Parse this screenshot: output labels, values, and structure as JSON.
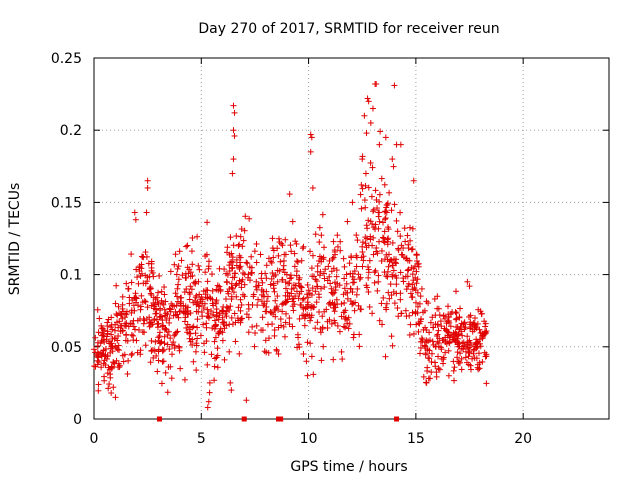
{
  "chart_data": {
    "type": "scatter",
    "title": "Day 270 of 2017, SRMTID for receiver reun",
    "xlabel": "GPS time / hours",
    "ylabel": "SRMTID / TECUs",
    "xlim": [
      0,
      24
    ],
    "ylim": [
      0,
      0.25
    ],
    "x_ticks": [
      "0",
      "5",
      "10",
      "15",
      "20"
    ],
    "x_tick_values": [
      0,
      5,
      10,
      15,
      20
    ],
    "y_ticks": [
      "0",
      "0.05",
      "0.1",
      "0.15",
      "0.2",
      "0.25"
    ],
    "y_tick_values": [
      0,
      0.05,
      0.1,
      0.15,
      0.2,
      0.25
    ],
    "grid": true,
    "marker": "+",
    "color": "#e00000",
    "series": [
      {
        "name": "SRMTID",
        "trend": [
          {
            "x": 0.0,
            "y": 0.05,
            "spread": 0.012
          },
          {
            "x": 0.5,
            "y": 0.045,
            "spread": 0.012
          },
          {
            "x": 1.0,
            "y": 0.055,
            "spread": 0.013
          },
          {
            "x": 1.5,
            "y": 0.07,
            "spread": 0.015
          },
          {
            "x": 2.0,
            "y": 0.085,
            "spread": 0.02
          },
          {
            "x": 2.5,
            "y": 0.08,
            "spread": 0.02
          },
          {
            "x": 3.0,
            "y": 0.06,
            "spread": 0.015
          },
          {
            "x": 3.5,
            "y": 0.065,
            "spread": 0.018
          },
          {
            "x": 4.0,
            "y": 0.075,
            "spread": 0.02
          },
          {
            "x": 4.5,
            "y": 0.085,
            "spread": 0.02
          },
          {
            "x": 5.0,
            "y": 0.08,
            "spread": 0.02
          },
          {
            "x": 5.5,
            "y": 0.07,
            "spread": 0.022
          },
          {
            "x": 6.0,
            "y": 0.075,
            "spread": 0.02
          },
          {
            "x": 6.5,
            "y": 0.095,
            "spread": 0.022
          },
          {
            "x": 7.0,
            "y": 0.1,
            "spread": 0.02
          },
          {
            "x": 7.5,
            "y": 0.09,
            "spread": 0.02
          },
          {
            "x": 8.0,
            "y": 0.08,
            "spread": 0.02
          },
          {
            "x": 8.5,
            "y": 0.085,
            "spread": 0.02
          },
          {
            "x": 9.0,
            "y": 0.095,
            "spread": 0.022
          },
          {
            "x": 9.5,
            "y": 0.09,
            "spread": 0.022
          },
          {
            "x": 10.0,
            "y": 0.085,
            "spread": 0.022
          },
          {
            "x": 10.5,
            "y": 0.095,
            "spread": 0.022
          },
          {
            "x": 11.0,
            "y": 0.09,
            "spread": 0.022
          },
          {
            "x": 11.5,
            "y": 0.085,
            "spread": 0.022
          },
          {
            "x": 12.0,
            "y": 0.095,
            "spread": 0.022
          },
          {
            "x": 12.5,
            "y": 0.11,
            "spread": 0.025
          },
          {
            "x": 13.0,
            "y": 0.13,
            "spread": 0.03
          },
          {
            "x": 13.5,
            "y": 0.115,
            "spread": 0.028
          },
          {
            "x": 14.0,
            "y": 0.11,
            "spread": 0.025
          },
          {
            "x": 14.5,
            "y": 0.11,
            "spread": 0.022
          },
          {
            "x": 15.0,
            "y": 0.09,
            "spread": 0.02
          },
          {
            "x": 15.5,
            "y": 0.05,
            "spread": 0.012
          },
          {
            "x": 16.0,
            "y": 0.055,
            "spread": 0.012
          },
          {
            "x": 16.5,
            "y": 0.06,
            "spread": 0.012
          },
          {
            "x": 17.0,
            "y": 0.055,
            "spread": 0.012
          },
          {
            "x": 17.5,
            "y": 0.055,
            "spread": 0.012
          },
          {
            "x": 18.0,
            "y": 0.055,
            "spread": 0.012
          },
          {
            "x": 18.3,
            "y": 0.055,
            "spread": 0.012
          }
        ],
        "outliers": [
          {
            "x": 2.5,
            "y": 0.165
          },
          {
            "x": 2.5,
            "y": 0.16
          },
          {
            "x": 2.45,
            "y": 0.143
          },
          {
            "x": 1.9,
            "y": 0.143
          },
          {
            "x": 1.95,
            "y": 0.138
          },
          {
            "x": 6.5,
            "y": 0.217
          },
          {
            "x": 6.55,
            "y": 0.212
          },
          {
            "x": 6.5,
            "y": 0.2
          },
          {
            "x": 6.55,
            "y": 0.196
          },
          {
            "x": 6.5,
            "y": 0.18
          },
          {
            "x": 6.45,
            "y": 0.17
          },
          {
            "x": 5.3,
            "y": 0.008
          },
          {
            "x": 5.35,
            "y": 0.012
          },
          {
            "x": 5.4,
            "y": 0.025
          },
          {
            "x": 6.4,
            "y": 0.02
          },
          {
            "x": 6.35,
            "y": 0.025
          },
          {
            "x": 7.1,
            "y": 0.013
          },
          {
            "x": 10.1,
            "y": 0.197
          },
          {
            "x": 10.15,
            "y": 0.195
          },
          {
            "x": 10.1,
            "y": 0.185
          },
          {
            "x": 10.2,
            "y": 0.16
          },
          {
            "x": 9.9,
            "y": 0.04
          },
          {
            "x": 9.95,
            "y": 0.03
          },
          {
            "x": 13.1,
            "y": 0.232
          },
          {
            "x": 13.15,
            "y": 0.232
          },
          {
            "x": 14.0,
            "y": 0.231
          },
          {
            "x": 12.75,
            "y": 0.222
          },
          {
            "x": 12.8,
            "y": 0.22
          },
          {
            "x": 12.6,
            "y": 0.21
          },
          {
            "x": 13.0,
            "y": 0.215
          },
          {
            "x": 12.9,
            "y": 0.205
          },
          {
            "x": 12.7,
            "y": 0.198
          },
          {
            "x": 13.6,
            "y": 0.195
          },
          {
            "x": 13.3,
            "y": 0.19
          },
          {
            "x": 14.1,
            "y": 0.19
          },
          {
            "x": 14.3,
            "y": 0.19
          },
          {
            "x": 12.5,
            "y": 0.18
          },
          {
            "x": 13.9,
            "y": 0.18
          },
          {
            "x": 14.9,
            "y": 0.165
          },
          {
            "x": 15.5,
            "y": 0.025
          },
          {
            "x": 15.6,
            "y": 0.028
          },
          {
            "x": 1.0,
            "y": 0.015
          },
          {
            "x": 0.8,
            "y": 0.018
          },
          {
            "x": 0.9,
            "y": 0.022
          },
          {
            "x": 8.6,
            "y": 0.045
          },
          {
            "x": 8.5,
            "y": 0.048
          },
          {
            "x": 17.4,
            "y": 0.095
          },
          {
            "x": 17.5,
            "y": 0.092
          },
          {
            "x": 16.0,
            "y": 0.085
          }
        ],
        "zero_values": [
          {
            "x": 3.05,
            "y": 0
          },
          {
            "x": 7.0,
            "y": 0
          },
          {
            "x": 8.6,
            "y": 0
          },
          {
            "x": 8.7,
            "y": 0
          },
          {
            "x": 14.1,
            "y": 0
          }
        ]
      }
    ]
  }
}
